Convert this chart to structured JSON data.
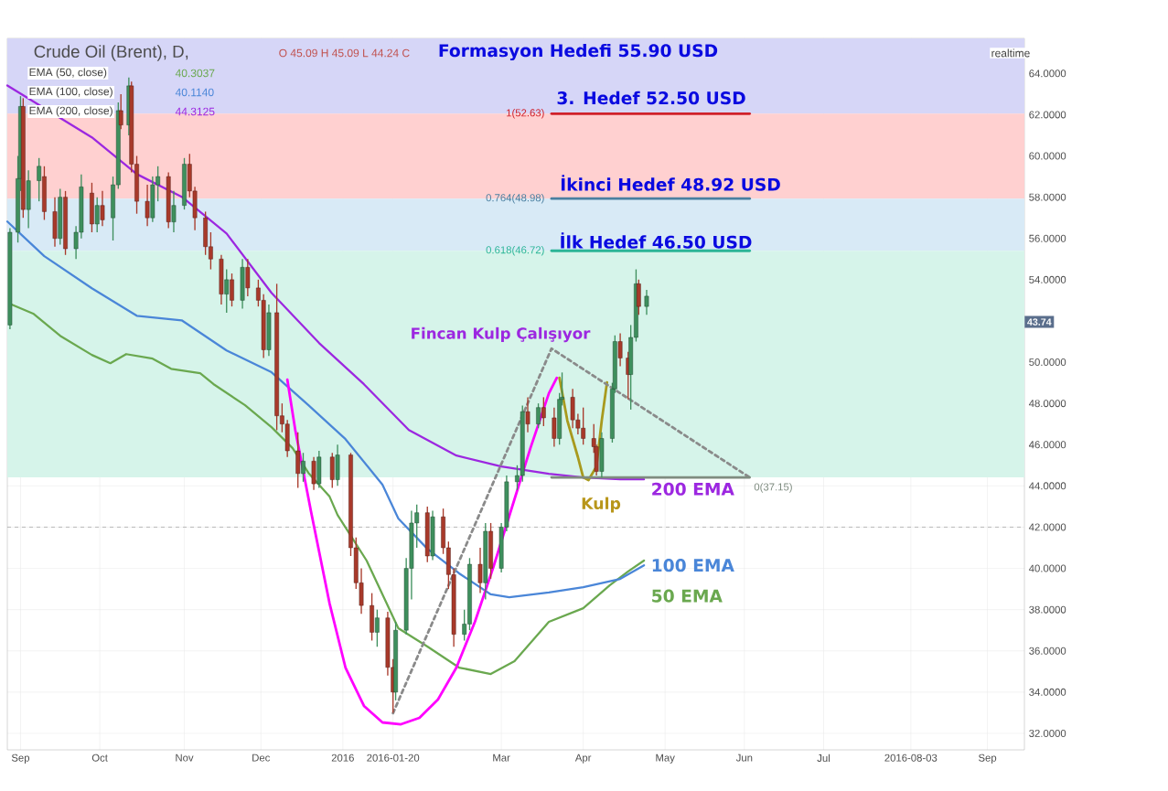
{
  "chart_data": {
    "type": "candlestick",
    "title": "Crude Oil (Brent), D,",
    "subtitle": "O 45.09 H 45.09 L 44.24 C",
    "x": [
      "2015-08-28",
      "2015-08-31",
      "2015-09-01",
      "2015-09-02",
      "2015-09-04",
      "2015-09-08",
      "2015-09-10",
      "2015-09-14",
      "2015-09-16",
      "2015-09-18",
      "2015-09-22",
      "2015-09-24",
      "2015-09-28",
      "2015-09-30",
      "2015-10-02",
      "2015-10-06",
      "2015-10-08",
      "2015-10-09",
      "2015-10-12",
      "2015-10-13",
      "2015-10-15",
      "2015-10-19",
      "2015-10-21",
      "2015-10-23",
      "2015-10-27",
      "2015-10-29",
      "2015-11-02",
      "2015-11-04",
      "2015-11-06",
      "2015-11-10",
      "2015-11-12",
      "2015-11-16",
      "2015-11-18",
      "2015-11-20",
      "2015-11-24",
      "2015-11-26",
      "2015-11-30",
      "2015-12-02",
      "2015-12-04",
      "2015-12-07",
      "2015-12-09",
      "2015-12-11",
      "2015-12-15",
      "2015-12-17",
      "2015-12-21",
      "2015-12-23",
      "2015-12-28",
      "2015-12-30",
      "2016-01-04",
      "2016-01-06",
      "2016-01-08",
      "2016-01-12",
      "2016-01-14",
      "2016-01-18",
      "2016-01-20",
      "2016-01-21",
      "2016-01-25",
      "2016-01-27",
      "2016-01-29",
      "2016-02-02",
      "2016-02-04",
      "2016-02-08",
      "2016-02-10",
      "2016-02-12",
      "2016-02-16",
      "2016-02-18",
      "2016-02-22",
      "2016-02-24",
      "2016-02-26",
      "2016-03-01",
      "2016-03-03",
      "2016-03-07",
      "2016-03-09",
      "2016-03-11",
      "2016-03-15",
      "2016-03-17",
      "2016-03-21",
      "2016-03-23",
      "2016-03-24",
      "2016-03-28",
      "2016-03-30",
      "2016-04-01",
      "2016-04-05",
      "2016-04-06",
      "2016-04-08",
      "2016-04-12",
      "2016-04-13",
      "2016-04-15",
      "2016-04-18",
      "2016-04-19",
      "2016-04-21",
      "2016-04-22",
      "2016-04-25"
    ],
    "ohlc": [
      [
        51.8,
        56.5,
        51.6,
        56.3
      ],
      [
        56.3,
        60.0,
        55.8,
        58.9
      ],
      [
        58.9,
        62.9,
        58.3,
        62.4
      ],
      [
        62.4,
        62.8,
        57.0,
        57.4
      ],
      [
        57.4,
        59.3,
        56.5,
        58.8
      ],
      [
        58.8,
        59.9,
        57.8,
        59.5
      ],
      [
        59.0,
        59.5,
        56.9,
        57.3
      ],
      [
        57.3,
        58.0,
        55.6,
        56.0
      ],
      [
        56.0,
        58.4,
        55.7,
        58.0
      ],
      [
        58.0,
        58.3,
        55.2,
        55.5
      ],
      [
        55.5,
        56.6,
        55.0,
        56.3
      ],
      [
        56.3,
        59.1,
        56.0,
        58.5
      ],
      [
        58.2,
        58.7,
        56.3,
        56.7
      ],
      [
        56.7,
        58.0,
        56.3,
        57.6
      ],
      [
        57.6,
        58.3,
        56.6,
        56.9
      ],
      [
        57.0,
        59.0,
        55.9,
        58.6
      ],
      [
        58.6,
        62.6,
        58.4,
        62.2
      ],
      [
        62.2,
        63.0,
        61.3,
        61.5
      ],
      [
        61.5,
        63.8,
        61.0,
        63.4
      ],
      [
        63.4,
        63.6,
        59.2,
        59.6
      ],
      [
        59.6,
        60.0,
        57.2,
        57.8
      ],
      [
        57.8,
        58.6,
        56.6,
        57.0
      ],
      [
        57.0,
        59.0,
        56.8,
        58.6
      ],
      [
        58.6,
        59.5,
        57.8,
        59.0
      ],
      [
        59.0,
        59.2,
        56.5,
        56.8
      ],
      [
        56.8,
        58.3,
        56.3,
        57.6
      ],
      [
        57.6,
        59.9,
        57.4,
        59.6
      ],
      [
        59.6,
        60.1,
        58.0,
        58.3
      ],
      [
        58.3,
        58.5,
        56.4,
        57.0
      ],
      [
        57.0,
        57.3,
        55.2,
        55.6
      ],
      [
        55.6,
        56.3,
        54.5,
        55.0
      ],
      [
        55.0,
        55.2,
        52.8,
        53.3
      ],
      [
        53.3,
        54.5,
        52.4,
        54.0
      ],
      [
        54.0,
        54.3,
        52.7,
        53.0
      ],
      [
        53.0,
        55.0,
        52.6,
        54.6
      ],
      [
        54.6,
        55.0,
        53.2,
        53.6
      ],
      [
        53.6,
        54.0,
        52.7,
        53.0
      ],
      [
        53.0,
        53.3,
        50.2,
        50.6
      ],
      [
        50.6,
        52.8,
        50.3,
        52.4
      ],
      [
        52.4,
        53.8,
        46.7,
        47.4
      ],
      [
        47.4,
        48.0,
        46.6,
        47.0
      ],
      [
        47.0,
        47.2,
        45.4,
        45.7
      ],
      [
        45.7,
        46.6,
        43.9,
        44.6
      ],
      [
        44.6,
        45.6,
        44.2,
        45.2
      ],
      [
        45.2,
        45.4,
        43.8,
        44.1
      ],
      [
        44.1,
        45.7,
        43.9,
        45.4
      ],
      [
        45.4,
        45.6,
        43.9,
        44.3
      ],
      [
        44.3,
        46.0,
        44.0,
        45.5
      ],
      [
        45.5,
        45.6,
        40.6,
        41.0
      ],
      [
        41.0,
        41.5,
        39.0,
        39.3
      ],
      [
        39.3,
        40.0,
        37.8,
        38.2
      ],
      [
        38.2,
        38.8,
        36.5,
        36.9
      ],
      [
        36.9,
        38.0,
        36.2,
        37.6
      ],
      [
        37.6,
        37.9,
        34.8,
        35.2
      ],
      [
        35.2,
        35.6,
        33.0,
        34.0
      ],
      [
        34.0,
        37.4,
        33.6,
        37.0
      ],
      [
        37.0,
        40.5,
        36.8,
        40.0
      ],
      [
        40.0,
        42.8,
        38.5,
        42.2
      ],
      [
        42.2,
        43.1,
        41.0,
        42.7
      ],
      [
        42.7,
        43.0,
        40.3,
        40.6
      ],
      [
        40.6,
        42.8,
        40.4,
        42.5
      ],
      [
        42.5,
        42.9,
        40.7,
        41.0
      ],
      [
        41.0,
        41.3,
        39.0,
        39.7
      ],
      [
        39.7,
        40.0,
        36.2,
        36.8
      ],
      [
        36.8,
        38.0,
        36.5,
        37.3
      ],
      [
        37.3,
        40.5,
        37.0,
        40.2
      ],
      [
        40.2,
        41.0,
        38.8,
        39.3
      ],
      [
        39.3,
        42.2,
        38.5,
        41.8
      ],
      [
        41.8,
        42.2,
        39.5,
        40.0
      ],
      [
        40.0,
        42.2,
        39.8,
        42.0
      ],
      [
        42.0,
        44.5,
        41.8,
        44.2
      ],
      [
        44.2,
        45.0,
        43.8,
        44.5
      ],
      [
        44.5,
        47.9,
        44.2,
        47.6
      ],
      [
        47.6,
        48.3,
        46.6,
        47.0
      ],
      [
        47.0,
        48.0,
        46.8,
        47.8
      ],
      [
        47.8,
        48.3,
        46.9,
        47.3
      ],
      [
        47.3,
        47.8,
        45.9,
        46.3
      ],
      [
        46.3,
        48.5,
        46.0,
        48.2
      ],
      [
        48.2,
        49.5,
        47.9,
        48.3
      ],
      [
        48.3,
        48.7,
        46.8,
        47.2
      ],
      [
        47.2,
        47.5,
        46.5,
        46.8
      ],
      [
        46.8,
        47.8,
        46.0,
        46.3
      ],
      [
        46.3,
        47.0,
        45.6,
        45.9
      ],
      [
        45.9,
        46.0,
        44.5,
        44.7
      ],
      [
        44.7,
        46.6,
        44.4,
        46.3
      ],
      [
        46.3,
        49.0,
        46.1,
        48.7
      ],
      [
        48.7,
        51.3,
        48.5,
        51.0
      ],
      [
        51.0,
        51.4,
        49.8,
        50.2
      ],
      [
        50.2,
        50.5,
        48.2,
        49.4
      ],
      [
        49.4,
        51.8,
        47.7,
        51.2
      ],
      [
        51.2,
        54.5,
        51.0,
        53.8
      ],
      [
        53.8,
        54.0,
        52.3,
        52.7
      ],
      [
        52.7,
        53.5,
        52.3,
        53.2
      ]
    ],
    "colors": [
      "#3e8f5d",
      "#3e8f5d",
      "#3e8f5d",
      "#a8392a",
      "#3e8f5d",
      "#3e8f5d",
      "#a8392a",
      "#a8392a",
      "#3e8f5d",
      "#a8392a",
      "#3e8f5d",
      "#3e8f5d",
      "#a8392a",
      "#3e8f5d",
      "#a8392a",
      "#3e8f5d",
      "#3e8f5d",
      "#a8392a",
      "#3e8f5d",
      "#a8392a",
      "#a8392a",
      "#a8392a",
      "#3e8f5d",
      "#3e8f5d",
      "#a8392a",
      "#3e8f5d",
      "#3e8f5d",
      "#a8392a",
      "#a8392a",
      "#a8392a",
      "#a8392a",
      "#a8392a",
      "#3e8f5d",
      "#a8392a",
      "#3e8f5d",
      "#a8392a",
      "#a8392a",
      "#a8392a",
      "#3e8f5d",
      "#a8392a",
      "#a8392a",
      "#a8392a",
      "#a8392a",
      "#3e8f5d",
      "#a8392a",
      "#3e8f5d",
      "#a8392a",
      "#3e8f5d",
      "#a8392a",
      "#a8392a",
      "#a8392a",
      "#a8392a",
      "#3e8f5d",
      "#a8392a",
      "#a8392a",
      "#3e8f5d",
      "#3e8f5d",
      "#3e8f5d",
      "#3e8f5d",
      "#a8392a",
      "#3e8f5d",
      "#a8392a",
      "#a8392a",
      "#a8392a",
      "#3e8f5d",
      "#3e8f5d",
      "#a8392a",
      "#3e8f5d",
      "#a8392a",
      "#3e8f5d",
      "#3e8f5d",
      "#3e8f5d",
      "#3e8f5d",
      "#a8392a",
      "#3e8f5d",
      "#a8392a",
      "#a8392a",
      "#3e8f5d",
      "#3e8f5d",
      "#a8392a",
      "#a8392a",
      "#a8392a",
      "#a8392a",
      "#a8392a",
      "#3e8f5d",
      "#3e8f5d",
      "#3e8f5d",
      "#a8392a",
      "#a8392a",
      "#3e8f5d",
      "#3e8f5d",
      "#a8392a",
      "#3e8f5d"
    ],
    "series": [
      {
        "type": "line",
        "name": "50 EMA",
        "color": "#6aa84f",
        "x": [
          "2015-08-28",
          "2015-09-06",
          "2015-09-16",
          "2015-09-28",
          "2015-10-05",
          "2015-10-11",
          "2015-10-21",
          "2015-10-28",
          "2015-11-08",
          "2015-11-13",
          "2015-11-25",
          "2015-12-05",
          "2015-12-13",
          "2015-12-19",
          "2015-12-27",
          "2015-12-30",
          "2016-01-10",
          "2016-01-22",
          "2016-02-02",
          "2016-02-14",
          "2016-02-26",
          "2016-03-06",
          "2016-03-19",
          "2016-04-01",
          "2016-04-11",
          "2016-04-18",
          "2016-04-24"
        ],
        "values": [
          52.83,
          52.34,
          51.28,
          50.35,
          49.95,
          50.39,
          50.17,
          49.68,
          49.46,
          48.94,
          47.91,
          46.85,
          45.83,
          44.63,
          43.48,
          42.59,
          40.38,
          37.1,
          36.21,
          35.19,
          34.88,
          35.5,
          37.41,
          38.07,
          39.18,
          39.85,
          40.38
        ]
      },
      {
        "type": "line",
        "name": "100 EMA",
        "color": "#4a86d8",
        "x": [
          "2015-08-27",
          "2015-09-10",
          "2015-09-28",
          "2015-10-15",
          "2015-11-01",
          "2015-11-18",
          "2015-12-05",
          "2015-12-19",
          "2016-01-02",
          "2016-01-16",
          "2016-01-22",
          "2016-02-02",
          "2016-02-14",
          "2016-02-26",
          "2016-03-04",
          "2016-03-19",
          "2016-04-01",
          "2016-04-15",
          "2016-04-24"
        ],
        "values": [
          56.82,
          55.14,
          53.58,
          52.25,
          52.03,
          50.57,
          49.51,
          47.91,
          46.27,
          44.06,
          42.42,
          40.95,
          39.76,
          38.74,
          38.6,
          38.83,
          39.09,
          39.49,
          40.15
        ]
      },
      {
        "type": "line",
        "name": "200 EMA",
        "color": "#9c27e0",
        "x": [
          "2015-08-27",
          "2015-09-28",
          "2015-10-15",
          "2015-11-01",
          "2015-11-18",
          "2015-12-05",
          "2015-12-23",
          "2016-01-09",
          "2016-01-26",
          "2016-02-13",
          "2016-03-01",
          "2016-03-19",
          "2016-04-01",
          "2016-04-15",
          "2016-04-24"
        ],
        "values": [
          63.42,
          60.9,
          59.12,
          58.02,
          56.24,
          53.36,
          50.93,
          48.93,
          46.71,
          45.47,
          44.94,
          44.59,
          44.41,
          44.32,
          44.32
        ]
      },
      {
        "type": "line",
        "color": "#ff00ff",
        "x": [
          "2015-12-11",
          "2015-12-14",
          "2015-12-20",
          "2015-12-27",
          "2016-01-02",
          "2016-01-09",
          "2016-01-16",
          "2016-01-23",
          "2016-01-30",
          "2016-02-06",
          "2016-02-13",
          "2016-02-20",
          "2016-02-27",
          "2016-03-05",
          "2016-03-12",
          "2016-03-19",
          "2016-03-22"
        ],
        "values": [
          49.15,
          46.71,
          42.73,
          38.29,
          35.19,
          33.33,
          32.53,
          32.44,
          32.75,
          33.64,
          35.19,
          37.41,
          40.07,
          42.95,
          45.83,
          48.49,
          49.24
        ]
      },
      {
        "type": "line",
        "color": "#a89a1e",
        "x": [
          "2016-03-23",
          "2016-03-26",
          "2016-03-30",
          "2016-04-01",
          "2016-04-03",
          "2016-04-06",
          "2016-04-08",
          "2016-04-10"
        ],
        "values": [
          49.24,
          47.16,
          45.39,
          44.41,
          44.28,
          44.94,
          47.16,
          49.02
        ]
      },
      {
        "type": "line",
        "color": "#8a8a8a",
        "line_style": "dashed",
        "x": [
          "2016-01-20",
          "2016-03-20",
          "2016-06-03"
        ],
        "values": [
          32.98,
          50.66,
          44.41
        ]
      },
      {
        "type": "line",
        "color": "#d0202a",
        "x": [
          "2016-03-20",
          "2016-06-03"
        ],
        "values": [
          62.05,
          62.05
        ]
      },
      {
        "type": "line",
        "color": "#4a7fa0",
        "x": [
          "2016-03-20",
          "2016-06-03"
        ],
        "values": [
          57.93,
          57.93
        ]
      },
      {
        "type": "line",
        "color": "#2bb597",
        "x": [
          "2016-03-20",
          "2016-06-03"
        ],
        "values": [
          55.4,
          55.4
        ]
      },
      {
        "type": "line",
        "color": "#7f8c80",
        "x": [
          "2016-03-20",
          "2016-06-03"
        ],
        "values": [
          44.41,
          44.41
        ]
      }
    ],
    "xlim": [
      "2015-08-27",
      "2016-09-15"
    ],
    "xticks": [
      {
        "value": "2015-09-01",
        "label": "Sep"
      },
      {
        "value": "2015-10-01",
        "label": "Oct"
      },
      {
        "value": "2015-11-02",
        "label": "Nov"
      },
      {
        "value": "2015-12-01",
        "label": "Dec"
      },
      {
        "value": "2016-01-01",
        "label": "2016"
      },
      {
        "value": "2016-01-20",
        "label": "2016-01-20"
      },
      {
        "value": "2016-03-01",
        "label": "Mar"
      },
      {
        "value": "2016-04-01",
        "label": "Apr"
      },
      {
        "value": "2016-05-02",
        "label": "May"
      },
      {
        "value": "2016-06-01",
        "label": "Jun"
      },
      {
        "value": "2016-07-01",
        "label": "Jul"
      },
      {
        "value": "2016-08-03",
        "label": "2016-08-03"
      },
      {
        "value": "2016-09-01",
        "label": "Sep"
      }
    ],
    "ylim": [
      31.2,
      65.7
    ],
    "yticks": [
      {
        "value": 32,
        "label": "32.0000"
      },
      {
        "value": 34,
        "label": "34.0000"
      },
      {
        "value": 36,
        "label": "36.0000"
      },
      {
        "value": 38,
        "label": "38.0000"
      },
      {
        "value": 40,
        "label": "40.0000"
      },
      {
        "value": 42,
        "label": "42.0000"
      },
      {
        "value": 44,
        "label": "44.0000"
      },
      {
        "value": 46,
        "label": "46.0000"
      },
      {
        "value": 48,
        "label": "48.0000"
      },
      {
        "value": 50,
        "label": "50.0000"
      },
      {
        "value": 52,
        "label": null
      },
      {
        "value": 54,
        "label": "54.0000"
      },
      {
        "value": 56,
        "label": "56.0000"
      },
      {
        "value": 58,
        "label": "58.0000"
      },
      {
        "value": 60,
        "label": "60.0000"
      },
      {
        "value": 62,
        "label": "62.0000"
      },
      {
        "value": 64,
        "label": "64.0000"
      }
    ],
    "grid": true,
    "bands": [
      {
        "axis": "y",
        "from": 62.05,
        "to": 65.7,
        "color": "#d6d6f7"
      },
      {
        "axis": "y",
        "from": 57.93,
        "to": 62.05,
        "color": "#ffd0d0"
      },
      {
        "axis": "y",
        "from": 55.4,
        "to": 57.93,
        "color": "#d8eaf6"
      },
      {
        "axis": "y",
        "from": 44.41,
        "to": 55.4,
        "color": "#d6f4ea"
      }
    ],
    "ref_lines": [
      {
        "axis": "y",
        "value": 42,
        "color": "#aaaaaa",
        "line_style": "dashed"
      }
    ],
    "annotations": [
      "EMA (50, close)",
      "40.3037",
      "EMA (100, close)",
      "40.1140",
      "EMA (200, close)",
      "44.3125",
      "realtime",
      {
        "text": "43.74",
        "x": "2016-09-15",
        "y": 51.95
      },
      "Formasyon Hedefi 55.90 USD",
      "3. Hedef 52.50 USD",
      "İkinci Hedef 48.92 USD",
      "İlk Hedef 46.50 USD",
      "Fincan Kulp Çalışıyor",
      "Kulp",
      {
        "text": "1(52.63)",
        "x": "2016-03-19",
        "y": 62.05
      },
      {
        "text": "0.764(48.98)",
        "x": "2016-03-19",
        "y": 57.93
      },
      {
        "text": "0.618(46.72)",
        "x": "2016-03-19",
        "y": 55.4
      },
      {
        "text": "0(37.15)",
        "x": "2016-06-03",
        "y": 44.41
      }
    ]
  }
}
